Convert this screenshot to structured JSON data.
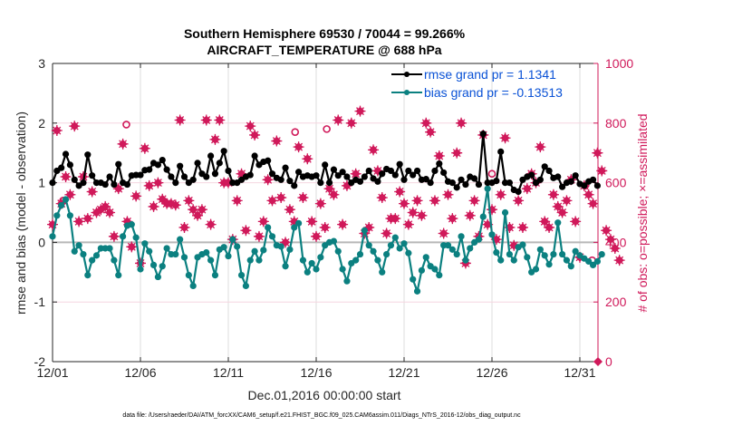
{
  "chart_data": {
    "type": "line",
    "title": "Southern Hemisphere 69530 / 70044 = 99.266%",
    "subtitle": "AIRCRAFT_TEMPERATURE @ 688 hPa",
    "xlabel": "Dec.01,2016 00:00:00 start",
    "ylabel": "rmse and bias (model - observation)",
    "ylabel_right": "# of obs: o=possible; ×=assimilated",
    "footnote": "data file: /Users/raeder/DAI/ATM_forcXX/CAM6_setup/f.e21.FHIST_BGC.f09_025.CAM6assim.011/Diags_NTrS_2016-12/obs_diag_output.nc",
    "x_tick_labels": [
      "12/01",
      "12/06",
      "12/11",
      "12/16",
      "12/21",
      "12/26",
      "12/31"
    ],
    "x_tick_days": [
      0,
      5,
      10,
      15,
      20,
      25,
      30
    ],
    "xlim_days": [
      0,
      30.8
    ],
    "ylim": [
      -2,
      3
    ],
    "y_ticks": [
      "3",
      "2",
      "1",
      "0",
      "-1",
      "-2"
    ],
    "y_tick_values": [
      3,
      2,
      1,
      0,
      -1,
      -2
    ],
    "ylim_right": [
      0,
      1000
    ],
    "y_ticks_right": [
      "1000",
      "800",
      "600",
      "400",
      "200",
      "0"
    ],
    "y_tick_values_right": [
      1000,
      800,
      600,
      400,
      200,
      0
    ],
    "grid": true,
    "legend_position": "top-right",
    "zero_line": 0,
    "colors": {
      "rmse": "#000000",
      "bias": "#0b8080",
      "obs": "#d0195a",
      "axis_right": "#d0195a",
      "legend_text": "#0a52d6",
      "grid": "#dcdcdc",
      "zero": "#b7b7b7"
    },
    "series": [
      {
        "name": "rmse grand pr = 1.1341",
        "key": "rmse",
        "step_days": 0.25,
        "values": [
          1.0,
          1.2,
          1.25,
          1.48,
          1.3,
          1.05,
          0.95,
          1.0,
          1.47,
          1.12,
          1.0,
          1.0,
          0.97,
          1.1,
          0.97,
          1.31,
          1.0,
          0.97,
          1.12,
          1.13,
          1.13,
          1.21,
          1.22,
          1.33,
          1.3,
          1.38,
          1.22,
          1.1,
          1.0,
          1.28,
          1.1,
          1.0,
          1.05,
          1.33,
          1.15,
          1.1,
          1.45,
          1.15,
          1.33,
          1.53,
          1.2,
          1.0,
          1.0,
          1.05,
          1.1,
          1.13,
          1.45,
          1.3,
          1.35,
          1.37,
          1.15,
          1.08,
          1.05,
          1.25,
          1.03,
          0.95,
          1.18,
          1.1,
          1.12,
          1.1,
          1.12,
          1.0,
          1.3,
          1.0,
          1.22,
          1.12,
          1.18,
          1.1,
          1.0,
          1.05,
          1.02,
          1.1,
          1.2,
          1.07,
          1.02,
          1.15,
          1.23,
          1.2,
          1.13,
          1.31,
          1.05,
          1.2,
          1.13,
          1.2,
          1.05,
          1.06,
          1.0,
          1.2,
          1.32,
          1.17,
          1.02,
          1.0,
          0.92,
          1.05,
          0.97,
          1.1,
          1.07,
          0.97,
          1.82,
          1.0,
          1.0,
          1.03,
          1.52,
          1.0,
          1.0,
          0.88,
          0.85,
          1.05,
          1.1,
          1.13,
          1.0,
          1.05,
          1.27,
          1.2,
          1.08,
          1.1,
          0.93,
          1.0,
          1.02,
          1.12,
          0.98,
          0.95,
          1.02,
          1.05,
          0.95
        ]
      },
      {
        "name": "bias grand pr = -0.13513",
        "key": "bias",
        "step_days": 0.25,
        "values": [
          0.1,
          0.45,
          0.62,
          0.72,
          0.45,
          -0.15,
          -0.05,
          -0.2,
          -0.55,
          -0.3,
          -0.22,
          -0.1,
          -0.1,
          -0.1,
          -0.3,
          -0.55,
          0.1,
          0.28,
          0.3,
          0.08,
          -0.45,
          -0.02,
          -0.15,
          -0.38,
          -0.58,
          -0.4,
          -0.1,
          -0.2,
          -0.2,
          0.05,
          -0.25,
          -0.55,
          -0.73,
          -0.25,
          -0.2,
          -0.17,
          -0.3,
          -0.55,
          -0.12,
          -0.08,
          -0.23,
          0.05,
          -0.07,
          -0.55,
          -0.73,
          -0.3,
          -0.15,
          -0.3,
          -0.13,
          0.25,
          0.1,
          -0.05,
          -0.07,
          -0.4,
          -0.12,
          0.25,
          0.32,
          -0.3,
          -0.5,
          -0.35,
          -0.45,
          -0.25,
          -0.05,
          0.0,
          0.02,
          -0.15,
          -0.45,
          -0.65,
          -0.35,
          -0.3,
          -0.2,
          0.2,
          -0.05,
          -0.15,
          -0.3,
          -0.5,
          -0.2,
          -0.05,
          0.08,
          -0.1,
          -0.02,
          -0.18,
          -0.62,
          -0.82,
          -0.47,
          -0.25,
          -0.4,
          -0.45,
          -0.55,
          -0.05,
          -0.05,
          -0.12,
          -0.2,
          0.1,
          -0.3,
          -0.1,
          0.0,
          0.05,
          0.43,
          0.9,
          0.13,
          -0.17,
          -0.3,
          0.5,
          -0.2,
          -0.3,
          -0.08,
          -0.04,
          -0.25,
          -0.5,
          -0.45,
          -0.12,
          -0.22,
          -0.37,
          -0.2,
          0.33,
          -0.2,
          -0.3,
          -0.4,
          -0.15,
          -0.22,
          -0.27,
          -0.32,
          -0.38,
          -0.32,
          -0.2
        ]
      },
      {
        "name": "# obs assimilated",
        "key": "obs",
        "step_days": 0.25,
        "axis": "right",
        "values": [
          460,
          775,
          530,
          620,
          560,
          790,
          470,
          620,
          480,
          570,
          500,
          510,
          520,
          500,
          420,
          580,
          730,
          470,
          385,
          555,
          330,
          715,
          590,
          520,
          600,
          545,
          530,
          530,
          525,
          810,
          450,
          540,
          510,
          490,
          510,
          810,
          460,
          745,
          810,
          600,
          600,
          410,
          540,
          630,
          440,
          790,
          760,
          420,
          470,
          610,
          540,
          740,
          550,
          400,
          510,
          470,
          720,
          550,
          680,
          470,
          420,
          530,
          450,
          580,
          560,
          810,
          460,
          590,
          800,
          630,
          840,
          430,
          450,
          710,
          640,
          550,
          430,
          480,
          480,
          570,
          530,
          460,
          500,
          540,
          490,
          800,
          770,
          540,
          690,
          430,
          560,
          480,
          700,
          800,
          330,
          490,
          540,
          420,
          760,
          460,
          510,
          410,
          560,
          750,
          450,
          390,
          540,
          450,
          580,
          630,
          600,
          720,
          470,
          450,
          560,
          520,
          500,
          540,
          610,
          470,
          350,
          590,
          560,
          530,
          700,
          640,
          440,
          410,
          380,
          340
        ]
      },
      {
        "name": "# obs possible",
        "key": "obs_possible",
        "markers": "circle",
        "points": [
          [
            4.2,
            795
          ],
          [
            0.6,
            540
          ],
          [
            13.8,
            770
          ],
          [
            15.6,
            780
          ],
          [
            25.0,
            630
          ],
          [
            30.3,
            590
          ],
          [
            30.7,
            340
          ]
        ]
      }
    ]
  },
  "legend": {
    "rmse_label": "rmse grand pr = 1.1341",
    "bias_label": "bias grand pr = -0.13513"
  }
}
